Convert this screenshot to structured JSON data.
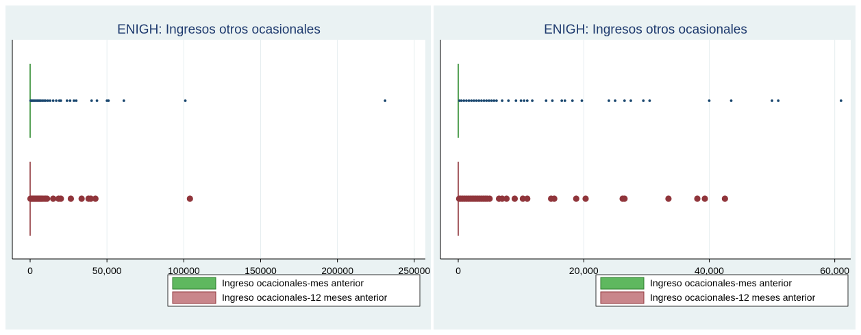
{
  "chart_data": [
    {
      "type": "box",
      "title": "ENIGH: Ingresos otros ocasionales",
      "xlim": [
        0,
        255000
      ],
      "xticks": [
        {
          "value": 0,
          "label": "0"
        },
        {
          "value": 50000,
          "label": "50,000"
        },
        {
          "value": 100000,
          "label": "100000"
        },
        {
          "value": 150000,
          "label": "150000"
        },
        {
          "value": 200000,
          "label": "200000"
        },
        {
          "value": 250000,
          "label": "250000"
        }
      ],
      "grid": true,
      "legend": "bottom",
      "series": [
        {
          "name": "Ingreso ocacionales-mes anterior",
          "color": "#1a476f",
          "box_color": "#2d8a2d",
          "legend_fill": "#5fb85f",
          "legend_border": "#2d7a2d",
          "median": 0,
          "outliers": [
            300,
            800,
            1500,
            2200,
            3000,
            3800,
            4600,
            5400,
            6200,
            7000,
            8000,
            9000,
            10000,
            11500,
            13000,
            15000,
            17000,
            19000,
            20000,
            24000,
            26000,
            28500,
            30000,
            40000,
            43500,
            50000,
            51000,
            61000,
            101000,
            231000
          ]
        },
        {
          "name": "Ingreso ocacionales-12 meses anterior",
          "color": "#90353b",
          "box_color": "#90353b",
          "legend_fill": "#c9868b",
          "legend_border": "#90353b",
          "median": 0,
          "outliers": [
            200,
            600,
            1000,
            1500,
            2000,
            2500,
            3000,
            3500,
            4000,
            4500,
            5000,
            5500,
            6000,
            6500,
            7000,
            7500,
            8000,
            9000,
            10000,
            11000,
            15000,
            18500,
            20000,
            26500,
            33500,
            38000,
            39500,
            42500,
            104000
          ]
        }
      ]
    },
    {
      "type": "box",
      "title": "ENIGH: Ingresos otros ocasionales",
      "xlim": [
        0,
        62000
      ],
      "xticks": [
        {
          "value": 0,
          "label": "0"
        },
        {
          "value": 20000,
          "label": "20,000"
        },
        {
          "value": 40000,
          "label": "40,000"
        },
        {
          "value": 60000,
          "label": "60,000"
        }
      ],
      "grid": true,
      "legend": "bottom",
      "series": [
        {
          "name": "Ingreso ocacionales-mes anterior",
          "color": "#1a476f",
          "box_color": "#2d8a2d",
          "legend_fill": "#5fb85f",
          "legend_border": "#2d7a2d",
          "median": 0,
          "outliers": [
            200,
            500,
            900,
            1300,
            1700,
            2100,
            2500,
            2900,
            3300,
            3700,
            4100,
            4500,
            4900,
            5300,
            5700,
            6100,
            7000,
            8000,
            9200,
            10000,
            10500,
            11000,
            11800,
            14000,
            15000,
            16500,
            17000,
            18200,
            19700,
            24000,
            25000,
            26500,
            27500,
            29500,
            30500,
            40000,
            43500,
            50000,
            51000,
            61000
          ]
        },
        {
          "name": "Ingreso ocacionales-12 meses anterior",
          "color": "#90353b",
          "box_color": "#90353b",
          "legend_fill": "#c9868b",
          "legend_border": "#90353b",
          "median": 0,
          "outliers": [
            150,
            400,
            700,
            1000,
            1300,
            1600,
            1900,
            2200,
            2500,
            2800,
            3100,
            3400,
            3700,
            4000,
            4300,
            4600,
            5000,
            6500,
            7000,
            7700,
            9000,
            10300,
            11000,
            14800,
            15300,
            18800,
            20300,
            26200,
            26500,
            33500,
            38100,
            39300,
            42500
          ]
        }
      ]
    }
  ]
}
